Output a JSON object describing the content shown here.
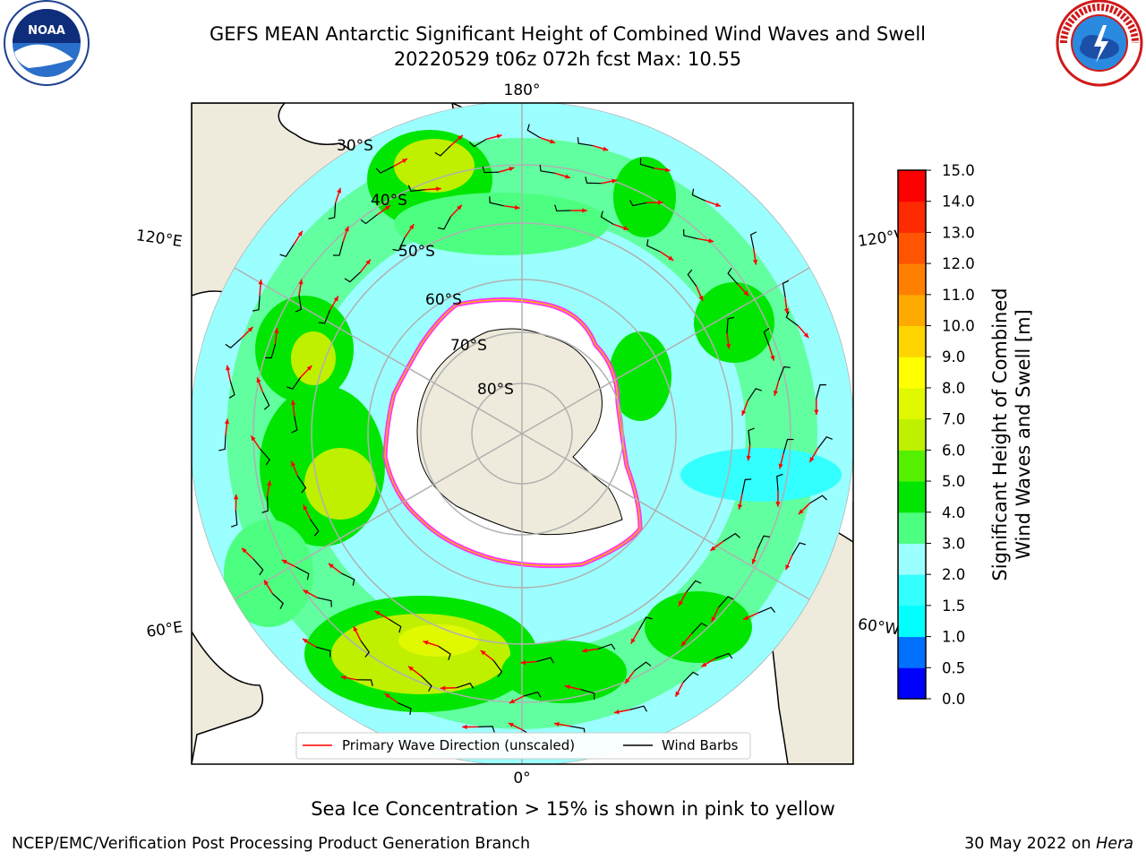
{
  "header": {
    "title_line1": "GEFS MEAN Antarctic Significant Height of Combined Wind Waves and Swell",
    "title_line2": "20220529 t06z 072h fcst   Max: 10.55"
  },
  "logos": {
    "left": {
      "name": "noaa-logo",
      "text": "NOAA"
    },
    "right": {
      "name": "nws-logo",
      "text": "NATIONAL WEATHER SERVICE"
    }
  },
  "map": {
    "projection": "south-polar-stereographic",
    "longitude_labels": {
      "top": "180°",
      "upper_left": "120°E",
      "upper_right": "120°W",
      "lower_left": "60°E",
      "lower_right": "60°W",
      "bottom": "0°"
    },
    "latitude_labels": [
      "30°S",
      "40°S",
      "50°S",
      "60°S",
      "70°S",
      "80°S"
    ],
    "legend": {
      "wave_direction": "Primary Wave Direction (unscaled)",
      "wind_barbs": "Wind Barbs"
    },
    "colors": {
      "land": "#efebdc",
      "ice": "#ffffff",
      "ice_edge": "#ff33ff",
      "arrow": "#ff0000",
      "barb": "#000000",
      "grid": "#b0b0b0"
    }
  },
  "colorbar": {
    "label_line1": "Significant Height of Combined",
    "label_line2": "Wind Waves and Swell [m]",
    "ticks": [
      "0.0",
      "0.5",
      "1.0",
      "1.5",
      "2.0",
      "3.0",
      "4.0",
      "5.0",
      "6.0",
      "7.0",
      "8.0",
      "9.0",
      "10.0",
      "11.0",
      "12.0",
      "13.0",
      "14.0",
      "15.0"
    ],
    "colors": [
      "#0000ff",
      "#0070ff",
      "#00ffff",
      "#33ffff",
      "#9cffff",
      "#4dff80",
      "#00e600",
      "#55f000",
      "#bff000",
      "#e0f800",
      "#ffff00",
      "#ffd500",
      "#ffaa00",
      "#ff8000",
      "#ff5500",
      "#ff2a00",
      "#ff0000"
    ]
  },
  "caption": "Sea Ice Concentration > 15% is shown in pink to yellow",
  "footer": {
    "left": "NCEP/EMC/Verification Post Processing Product Generation Branch",
    "right_date": "30 May 2022 on ",
    "right_host": "Hera"
  }
}
